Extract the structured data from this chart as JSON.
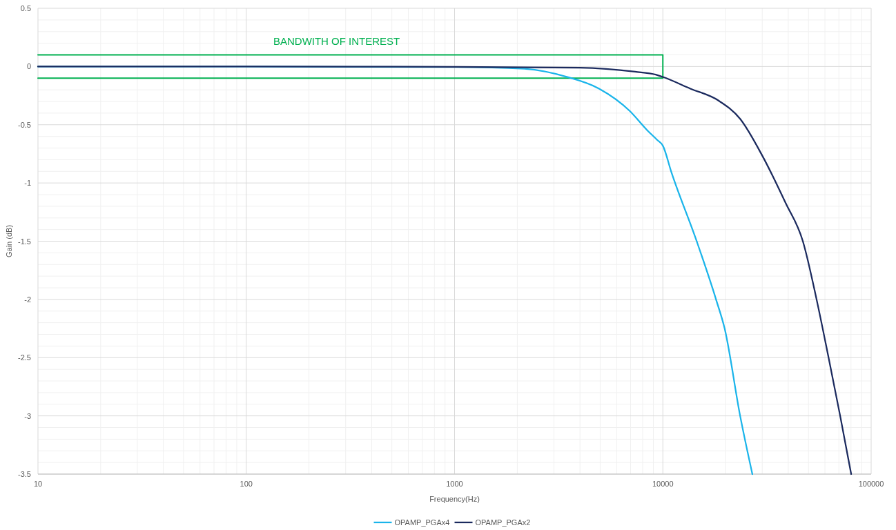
{
  "chart_data": {
    "type": "line",
    "xlabel": "Frequency(Hz)",
    "ylabel": "Gain (dB)",
    "log": "x",
    "xlim": [
      10,
      100000
    ],
    "xticks": [
      10,
      100,
      1000,
      10000,
      100000
    ],
    "ylim": [
      -3.5,
      0.5
    ],
    "yticks": [
      0.5,
      0,
      -0.5,
      -1,
      -1.5,
      -2,
      -2.5,
      -3,
      -3.5
    ],
    "grid": true,
    "legend": "bottom",
    "marker": "none",
    "line_style": "solid",
    "annotations": [
      "BANDWITH OF INTEREST"
    ],
    "series": [
      {
        "type": "line",
        "color": "#00b050",
        "x": [
          10,
          10000
        ],
        "values": [
          0.1,
          0.1
        ]
      },
      {
        "type": "line",
        "color": "#00b050",
        "x": [
          10,
          10000
        ],
        "values": [
          -0.1,
          -0.1
        ]
      },
      {
        "name": "OPAMP_PGAx4",
        "color": "#1ab4ea",
        "x": [
          10,
          100,
          1000,
          2170,
          3430,
          4940,
          6920,
          8440,
          9390,
          10000,
          11000,
          14600,
          18000,
          19800,
          23500,
          26900
        ],
        "values": [
          0,
          0,
          -0.005,
          -0.02,
          -0.087,
          -0.19,
          -0.38,
          -0.55,
          -0.63,
          -0.68,
          -0.91,
          -1.51,
          -2,
          -2.25,
          -3,
          -3.5
        ]
      },
      {
        "name": "OPAMP_PGAx2",
        "color": "#1b2a5e",
        "x": [
          10,
          100,
          1000,
          4000,
          7360,
          9250,
          10000,
          13550,
          18400,
          23500,
          29900,
          38800,
          47000,
          54700,
          62300,
          71000,
          80200
        ],
        "values": [
          0,
          0,
          -0.003,
          -0.01,
          -0.045,
          -0.07,
          -0.09,
          -0.19,
          -0.29,
          -0.45,
          -0.76,
          -1.17,
          -1.5,
          -2,
          -2.49,
          -3,
          -3.5
        ]
      }
    ]
  }
}
